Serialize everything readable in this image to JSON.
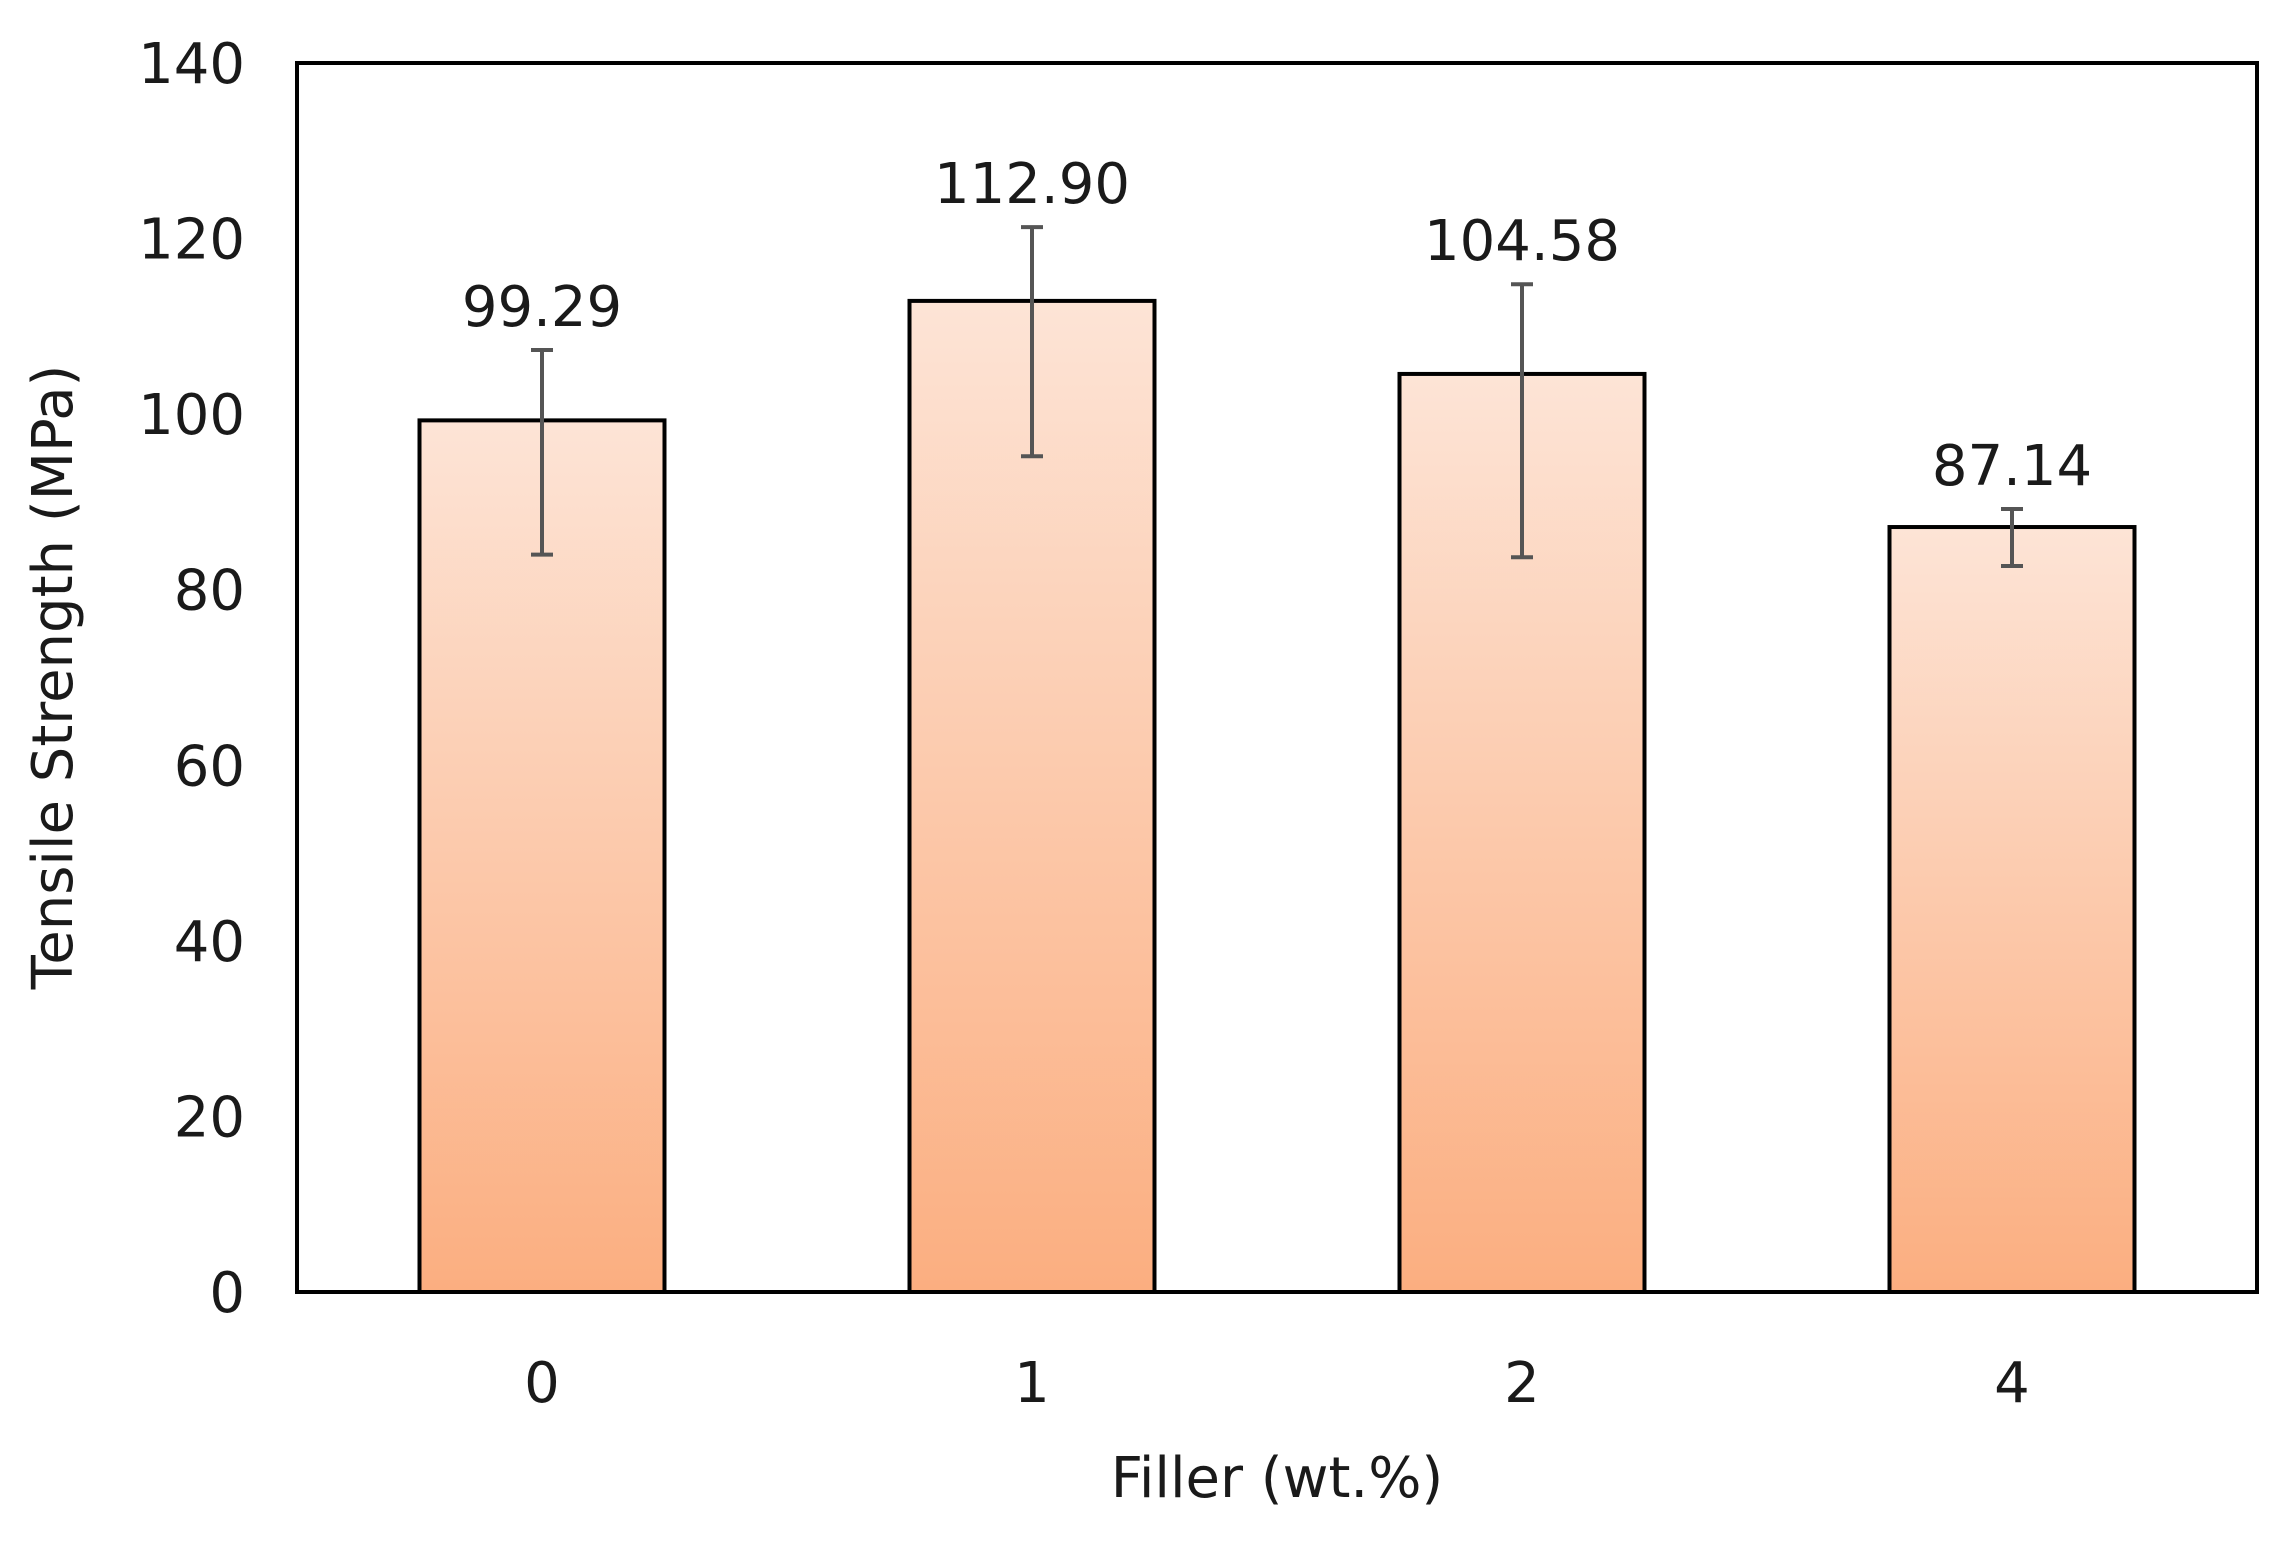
{
  "chart_data": {
    "type": "bar",
    "title": "",
    "xlabel": "Filler (wt.%)",
    "ylabel": "Tensile Strength (MPa)",
    "categories": [
      "0",
      "1",
      "2",
      "4"
    ],
    "values": [
      99.29,
      112.9,
      104.58,
      87.14
    ],
    "data_labels": [
      "99.29",
      "112.90",
      "104.58",
      "87.14"
    ],
    "error_bars": [
      {
        "low": 84.0,
        "high": 107.3
      },
      {
        "low": 95.2,
        "high": 121.3
      },
      {
        "low": 83.7,
        "high": 114.8
      },
      {
        "low": 82.7,
        "high": 89.2
      }
    ],
    "ylim": [
      0,
      140
    ],
    "yticks": [
      "0",
      "20",
      "40",
      "60",
      "80",
      "100",
      "120",
      "140"
    ],
    "grid": false,
    "legend": "none",
    "colors": {
      "bar_top": "#fde4d6",
      "bar_bottom": "#fbae80",
      "bar_edge": "#000000",
      "error_bar": "#555555",
      "frame": "#000000"
    }
  }
}
